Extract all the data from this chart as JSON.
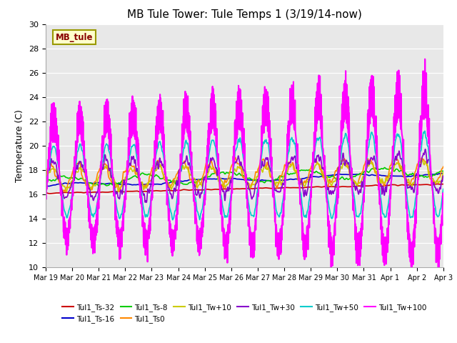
{
  "title": "MB Tule Tower: Tule Temps 1 (3/19/14-now)",
  "ylabel": "Temperature (C)",
  "ylim": [
    10,
    30
  ],
  "yticks": [
    10,
    12,
    14,
    16,
    18,
    20,
    22,
    24,
    26,
    28,
    30
  ],
  "fig_bg_color": "#ffffff",
  "plot_bg_color": "#e8e8e8",
  "legend_label": "MB_tule",
  "series_order": [
    "Tul1_Ts-32",
    "Tul1_Ts-16",
    "Tul1_Ts-8",
    "Tul1_Ts0",
    "Tul1_Tw+10",
    "Tul1_Tw+30",
    "Tul1_Tw+50",
    "Tul1_Tw+100"
  ],
  "series_colors": {
    "Tul1_Ts-32": "#cc0000",
    "Tul1_Ts-16": "#0000cc",
    "Tul1_Ts-8": "#00cc00",
    "Tul1_Ts0": "#ff8800",
    "Tul1_Tw+10": "#cccc00",
    "Tul1_Tw+30": "#8800cc",
    "Tul1_Tw+50": "#00cccc",
    "Tul1_Tw+100": "#ff00ff"
  },
  "series_lw": {
    "Tul1_Ts-32": 1.2,
    "Tul1_Ts-16": 1.2,
    "Tul1_Ts-8": 1.2,
    "Tul1_Ts0": 1.2,
    "Tul1_Tw+10": 1.2,
    "Tul1_Tw+30": 1.2,
    "Tul1_Tw+50": 1.2,
    "Tul1_Tw+100": 1.5
  },
  "x_tick_labels": [
    "Mar 19",
    "Mar 20",
    "Mar 21",
    "Mar 22",
    "Mar 23",
    "Mar 24",
    "Mar 25",
    "Mar 26",
    "Mar 27",
    "Mar 28",
    "Mar 29",
    "Mar 30",
    "Mar 31",
    "Apr 1",
    "Apr 2",
    "Apr 3"
  ],
  "legend_row1": [
    "Tul1_Ts-32",
    "Tul1_Ts-16",
    "Tul1_Ts-8",
    "Tul1_Ts0",
    "Tul1_Tw+10",
    "Tul1_Tw+30"
  ],
  "legend_row2": [
    "Tul1_Tw+50",
    "Tul1_Tw+100"
  ]
}
